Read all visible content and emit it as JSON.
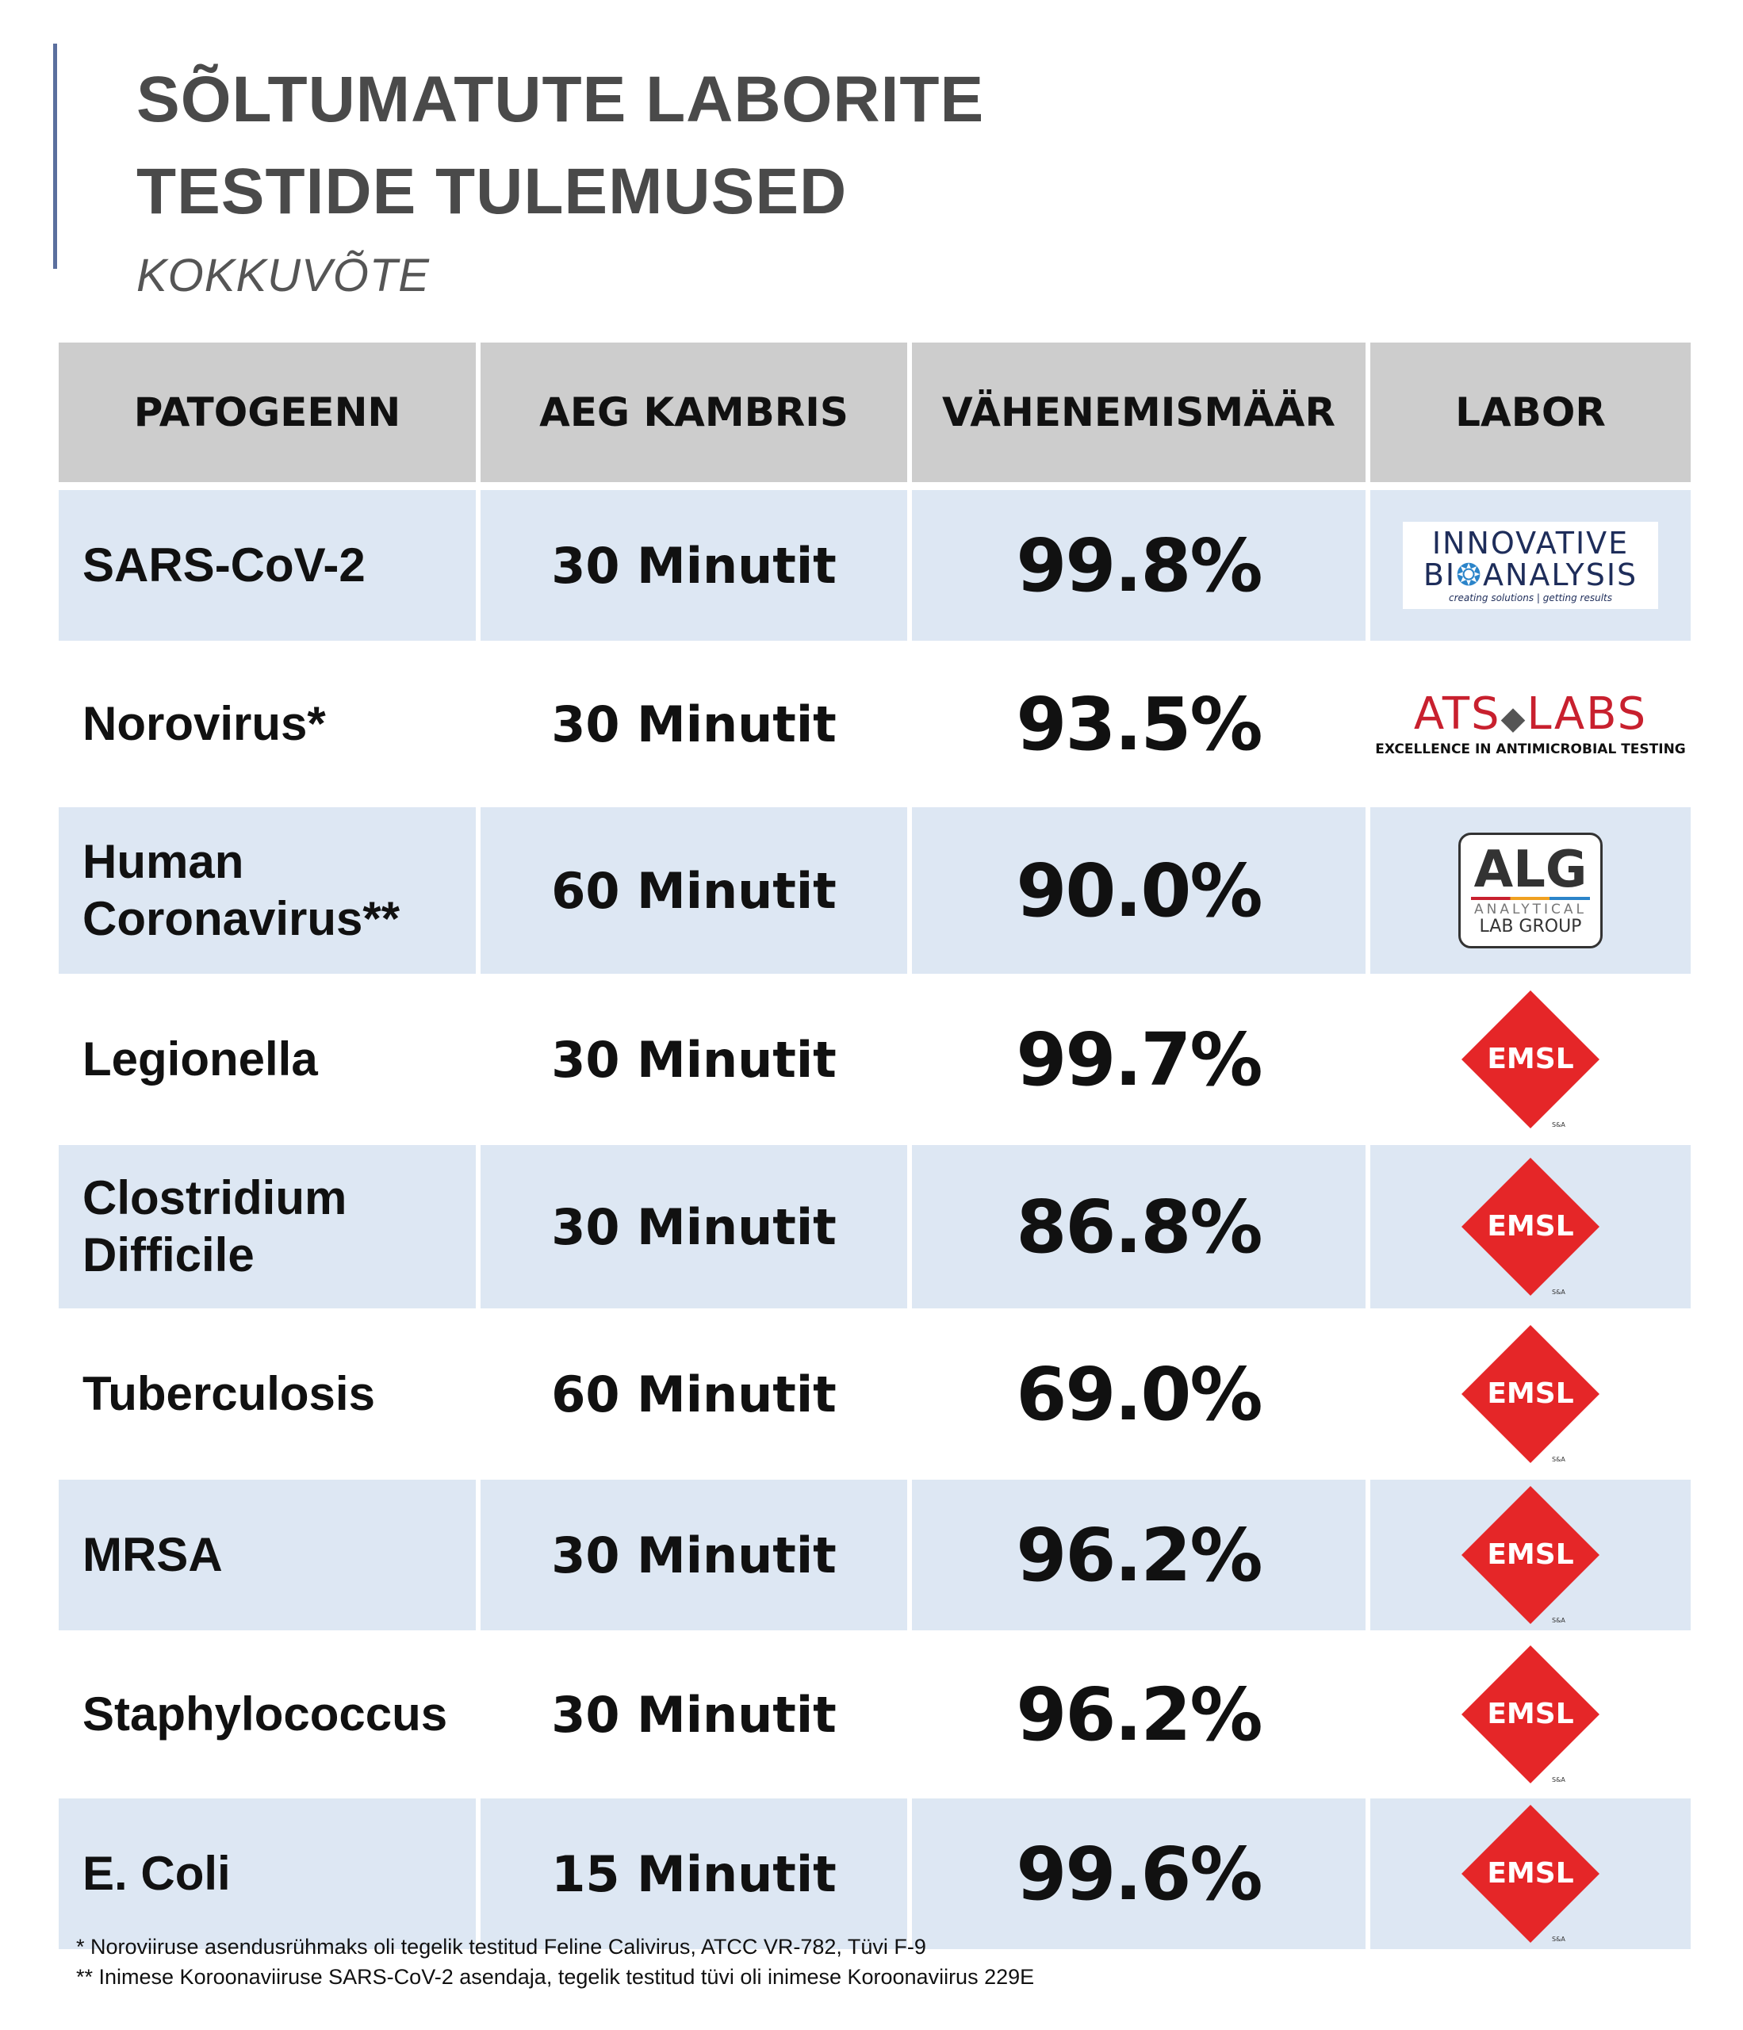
{
  "title": {
    "line1": "SÕLTUMATUTE LABORITE",
    "line2": "TESTIDE TULEMUSED",
    "subtitle": "KOKKUVÕTE"
  },
  "table": {
    "headers": [
      "PATOGEENN",
      "AEG KAMBRIS",
      "VÄHENEMISMÄÄR",
      "LABOR"
    ],
    "rows": [
      {
        "pathogen": "SARS-CoV-2",
        "time": "30 Minutit",
        "reduction": "99.8%",
        "lab": "innovative-bioanalysis"
      },
      {
        "pathogen": "Norovirus*",
        "time": "30 Minutit",
        "reduction": "93.5%",
        "lab": "ats-labs"
      },
      {
        "pathogen": "Human\nCoronavirus**",
        "time": "60 Minutit",
        "reduction": "90.0%",
        "lab": "alg"
      },
      {
        "pathogen": "Legionella",
        "time": "30 Minutit",
        "reduction": "99.7%",
        "lab": "emsl"
      },
      {
        "pathogen": "Clostridium\nDifficile",
        "time": "30 Minutit",
        "reduction": "86.8%",
        "lab": "emsl"
      },
      {
        "pathogen": "Tuberculosis",
        "time": "60 Minutit",
        "reduction": "69.0%",
        "lab": "emsl"
      },
      {
        "pathogen": "MRSA",
        "time": "30 Minutit",
        "reduction": "96.2%",
        "lab": "emsl"
      },
      {
        "pathogen": "Staphylococcus",
        "time": "30 Minutit",
        "reduction": "96.2%",
        "lab": "emsl"
      },
      {
        "pathogen": "E. Coli",
        "time": "15 Minutit",
        "reduction": "99.6%",
        "lab": "emsl"
      }
    ]
  },
  "logos": {
    "ib": {
      "line1": "INNOVATIVE",
      "line2a": "BI",
      "line2dot": "❂",
      "line2b": "ANALYSIS",
      "tagline": "creating solutions | getting results"
    },
    "ats": {
      "left": "ATS",
      "mid": "◆",
      "right": "LABS",
      "tagline": "EXCELLENCE IN ANTIMICROBIAL TESTING"
    },
    "alg": {
      "line1": "ALG",
      "line2": "ANALYTICAL",
      "line3": "LAB GROUP"
    },
    "emsl": {
      "text": "EMSL",
      "color": "#e52628"
    }
  },
  "footnotes": {
    "f1": "* Noroviiruse asendusrühmaks oli tegelik testitud Feline Calivirus, ATCC VR-782, Tüvi F-9",
    "f2": "** Inimese Koroonaviiruse SARS-CoV-2 asendaja, tegelik testitud tüvi oli inimese Koroonaviirus 229E"
  }
}
